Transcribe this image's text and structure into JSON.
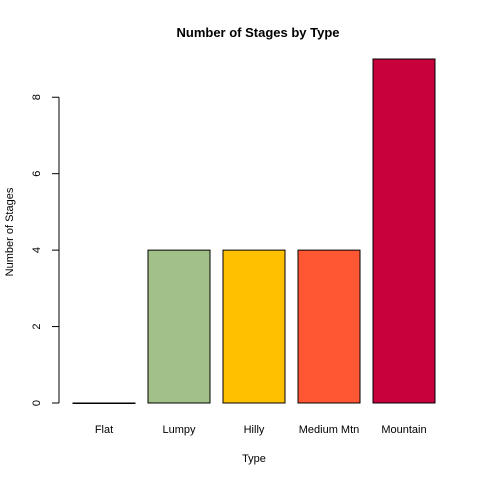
{
  "chart_data": {
    "type": "bar",
    "title": "Number of Stages by Type",
    "xlabel": "Type",
    "ylabel": "Number of Stages",
    "categories": [
      "Flat",
      "Lumpy",
      "Hilly",
      "Medium Mtn",
      "Mountain"
    ],
    "values": [
      0,
      4,
      4,
      4,
      9
    ],
    "colors": [
      "#ffffff",
      "#a1c189",
      "#ffc000",
      "#ff5733",
      "#c8003c"
    ],
    "yticks": [
      0,
      2,
      4,
      6,
      8
    ],
    "ylim": [
      0,
      9
    ],
    "grid": false,
    "legend": "none"
  }
}
